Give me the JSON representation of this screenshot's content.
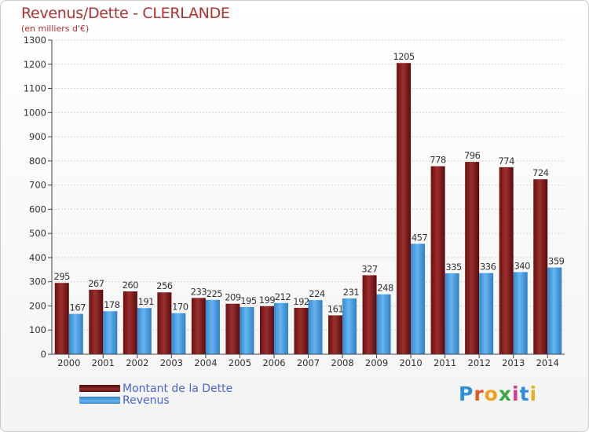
{
  "header": {
    "title": "Revenus/Dette - CLERLANDE",
    "subtitle": "(en milliers d'€)"
  },
  "chart_data": {
    "type": "bar",
    "title": "Revenus/Dette - CLERLANDE",
    "ylabel": "(en milliers d'€)",
    "xlabel": "",
    "categories": [
      "2000",
      "2001",
      "2002",
      "2003",
      "2004",
      "2005",
      "2006",
      "2007",
      "2008",
      "2009",
      "2010",
      "2011",
      "2012",
      "2013",
      "2014"
    ],
    "series": [
      {
        "name": "Montant de la Dette",
        "color": "#7a1c1c",
        "values": [
          295,
          267,
          260,
          256,
          233,
          209,
          199,
          192,
          161,
          327,
          1205,
          778,
          796,
          774,
          724
        ]
      },
      {
        "name": "Revenus",
        "color": "#4aa3e6",
        "values": [
          167,
          178,
          191,
          170,
          225,
          195,
          212,
          224,
          231,
          248,
          457,
          335,
          336,
          340,
          359
        ]
      }
    ],
    "value_labels": {
      "debt": [
        "295",
        "267",
        "260",
        "256",
        "233",
        "209",
        "199",
        "192",
        "161",
        "327",
        "1205",
        "778",
        "796",
        "774",
        "724"
      ],
      "revenue": [
        "167",
        "178",
        "191",
        "170",
        "225",
        "195",
        "212",
        "224",
        "231",
        "248",
        "457",
        "335",
        "336",
        "340",
        "359"
      ]
    },
    "yticks": [
      "0",
      "100",
      "200",
      "300",
      "400",
      "500",
      "600",
      "700",
      "800",
      "900",
      "1000",
      "1100",
      "1200",
      "1300"
    ],
    "ylim": [
      0,
      1300
    ],
    "grid": true,
    "legend_position": "bottom-left"
  },
  "legend": {
    "debt_label": "Montant de la Dette",
    "revenue_label": "Revenus"
  },
  "brand": {
    "letters": [
      "P",
      "r",
      "o",
      "x",
      "i",
      "t",
      "i"
    ],
    "colors": [
      "#2f8fd8",
      "#e05a2a",
      "#f0a020",
      "#3aa846",
      "#d83a8a",
      "#2f8fd8",
      "#e8b020"
    ]
  }
}
